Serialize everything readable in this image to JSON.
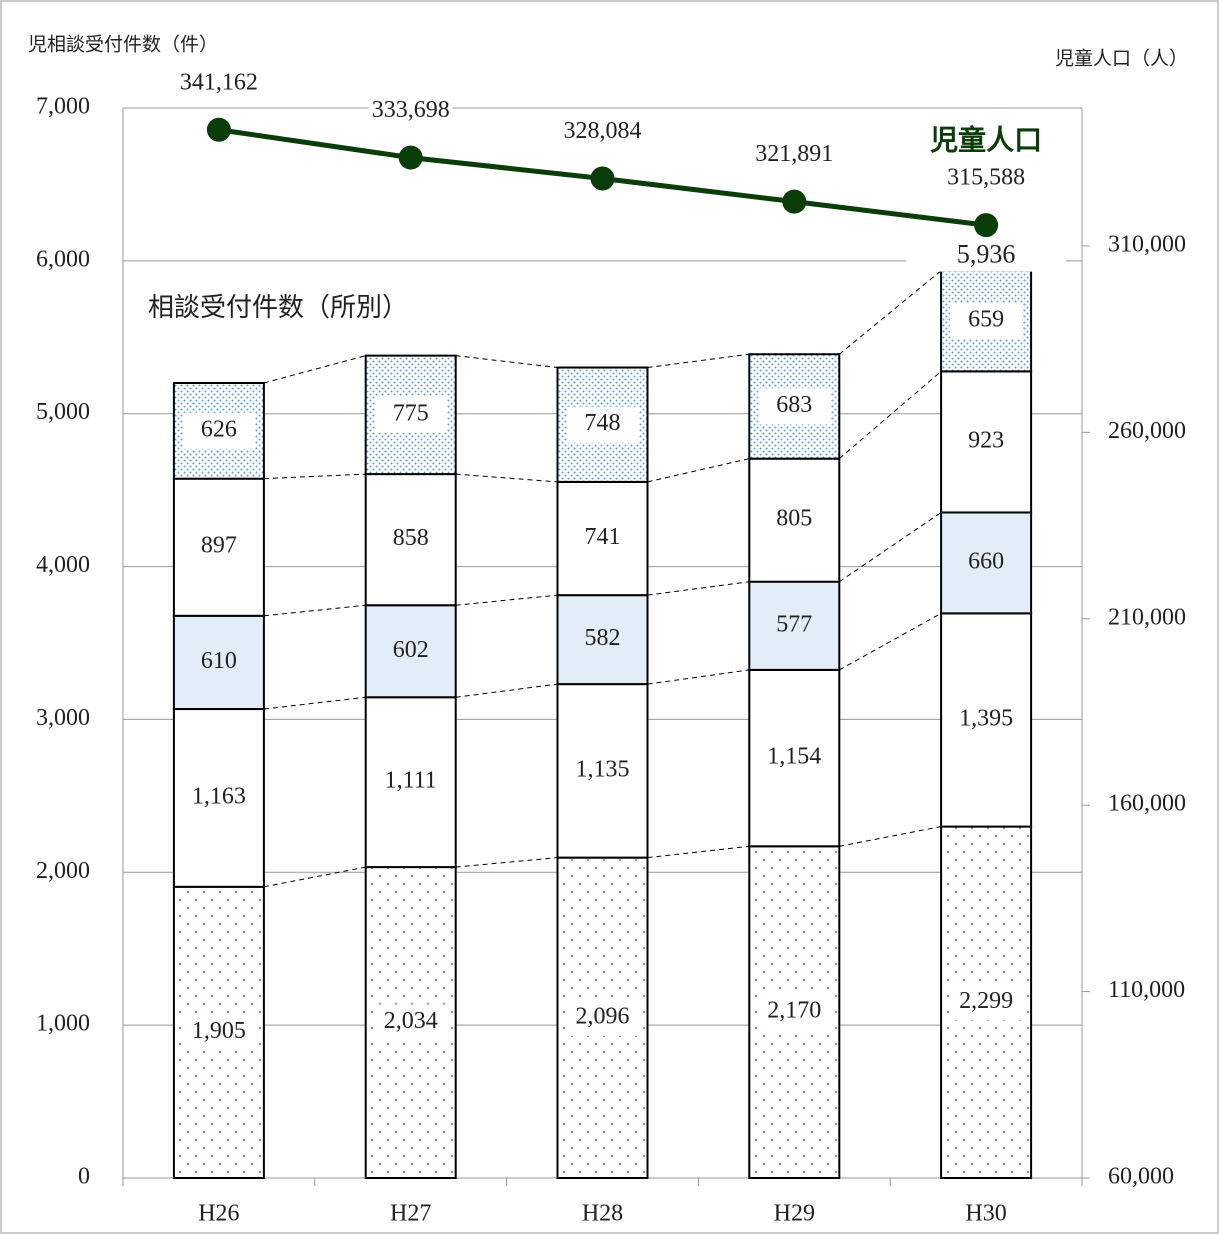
{
  "chart_data": {
    "type": "stacked-bar-line",
    "y_label": "児相談受付件数（件）",
    "y2_label": "児童人口（人）",
    "subtitle": "相談受付件数（所別）",
    "categories": [
      "H26",
      "H27",
      "H28",
      "H29",
      "H30"
    ],
    "ylim": [
      0,
      7000
    ],
    "yticks": [
      0,
      {
        "value": 1000,
        "label": "1,000"
      },
      {
        "value": 2000,
        "label": "2,000"
      },
      {
        "value": 3000,
        "label": "3,000"
      },
      {
        "value": 4000,
        "label": "4,000"
      },
      {
        "value": 5000,
        "label": "5,000"
      },
      {
        "value": 6000,
        "label": "6,000"
      },
      {
        "value": 7000,
        "label": "7,000"
      }
    ],
    "y2lim": [
      60000,
      347000
    ],
    "y2ticks": [
      {
        "value": 60000,
        "label": "60,000"
      },
      {
        "value": 110000,
        "label": "110,000"
      },
      {
        "value": 160000,
        "label": "160,000"
      },
      {
        "value": 210000,
        "label": "210,000"
      },
      {
        "value": 260000,
        "label": "260,000"
      },
      {
        "value": 310000,
        "label": "310,000"
      }
    ],
    "grid": true,
    "series": [
      {
        "color": "#ffffff",
        "pattern": "dots",
        "pattern_color": "#5b9bd5",
        "values": [
          1905,
          2034,
          2096,
          2170,
          2299
        ],
        "value_labels": [
          "1,905",
          "2,034",
          "2,096",
          "2,170",
          "2,299"
        ]
      },
      {
        "color": "#ffffff",
        "values": [
          1163,
          1111,
          1135,
          1154,
          1395
        ],
        "value_labels": [
          "1,163",
          "1,111",
          "1,135",
          "1,154",
          "1,395"
        ]
      },
      {
        "color": "#e3edf7",
        "values": [
          610,
          602,
          582,
          577,
          660
        ]
      },
      {
        "color": "#ffffff",
        "values": [
          897,
          858,
          741,
          805,
          923
        ]
      },
      {
        "color": "#ffffff",
        "pattern": "dense-dots",
        "pattern_color": "#5b9bd5",
        "values": [
          626,
          775,
          748,
          683,
          659
        ]
      },
      {
        "name": "児童人口",
        "type": "line",
        "axis": "y2",
        "color": "#0b3d0b",
        "values": [
          341162,
          333698,
          328084,
          321891,
          315588
        ],
        "value_labels": [
          "341,162",
          "333,698",
          "328,084",
          "321,891",
          "315,588"
        ]
      }
    ],
    "totals": [
      null,
      null,
      null,
      null,
      5936
    ],
    "total_labels": [
      null,
      null,
      null,
      null,
      "5,936"
    ]
  }
}
